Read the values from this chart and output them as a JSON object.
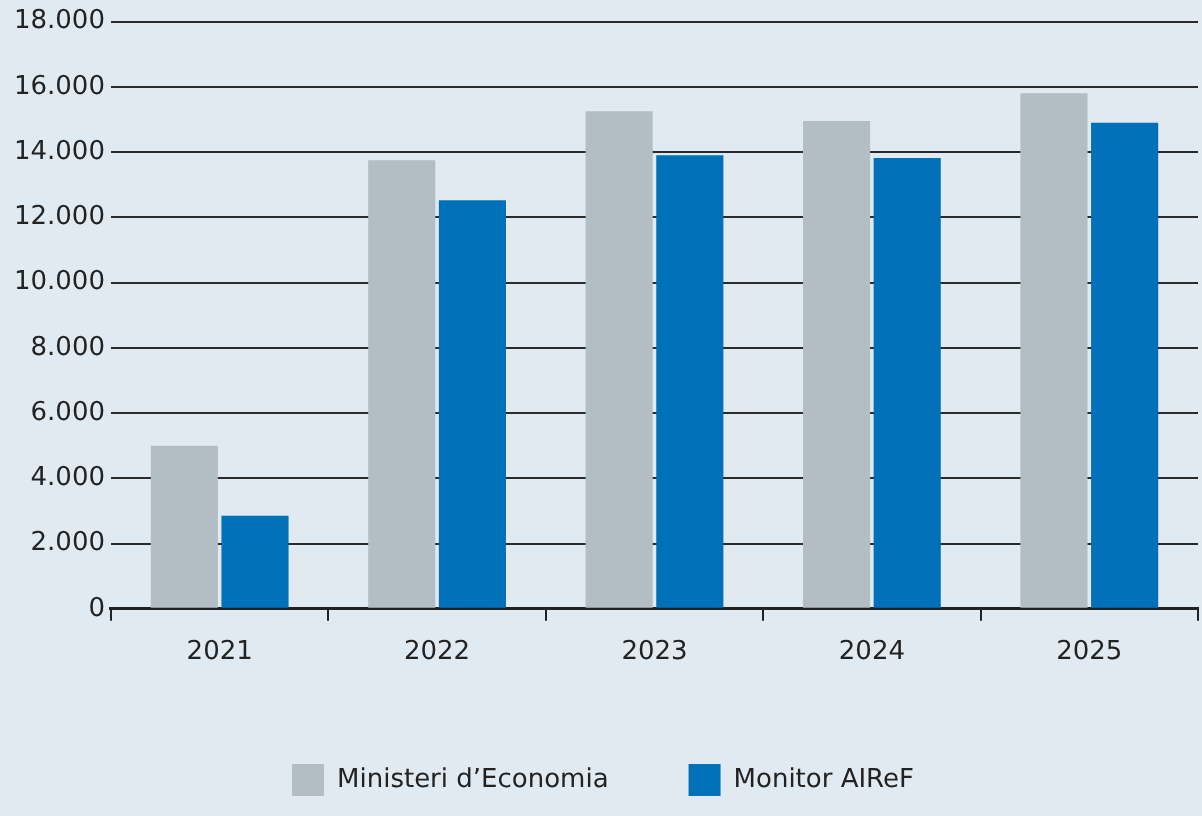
{
  "chart_data": {
    "type": "bar",
    "categories": [
      "2021",
      "2022",
      "2023",
      "2024",
      "2025"
    ],
    "series": [
      {
        "name": "Ministeri d’Economia",
        "color": "#b2bec3",
        "values": [
          5000,
          13750,
          15250,
          14950,
          15800
        ]
      },
      {
        "name": "Monitor AIReF",
        "color": "#0070b8",
        "values": [
          2850,
          12520,
          13900,
          13820,
          14900
        ]
      }
    ],
    "ylim": [
      0,
      18000
    ],
    "yticks": [
      {
        "value": 0,
        "label": "0"
      },
      {
        "value": 2000,
        "label": "2.000"
      },
      {
        "value": 4000,
        "label": "4.000"
      },
      {
        "value": 6000,
        "label": "6.000"
      },
      {
        "value": 8000,
        "label": "8.000"
      },
      {
        "value": 10000,
        "label": "10.000"
      },
      {
        "value": 12000,
        "label": "12.000"
      },
      {
        "value": 14000,
        "label": "14.000"
      },
      {
        "value": 16000,
        "label": "16.000"
      },
      {
        "value": 18000,
        "label": "18.000"
      }
    ],
    "grid": "y",
    "legend": "bottom"
  }
}
